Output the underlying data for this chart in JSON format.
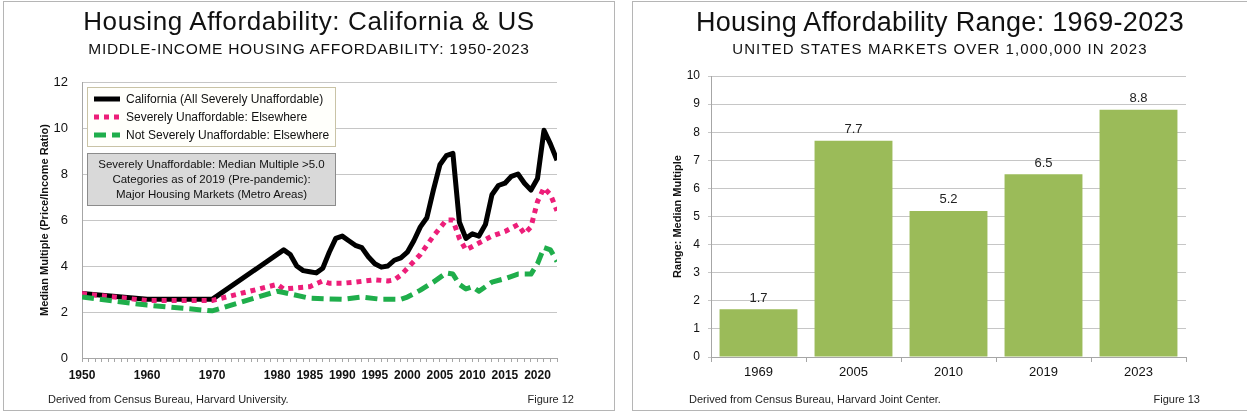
{
  "chart_data": [
    {
      "type": "line",
      "title": "Housing Affordability: California & US",
      "subtitle": "MIDDLE-INCOME HOUSING AFFORDABILITY: 1950-2023",
      "ylabel": "Median Multiple (Price/Income Ratio)",
      "xlim": [
        1950,
        2023
      ],
      "xticks": [
        1950,
        {
          "value": 1951,
          "label": null
        },
        {
          "value": 1952,
          "label": null
        },
        {
          "value": 1953,
          "label": null
        },
        {
          "value": 1954,
          "label": null
        },
        {
          "value": 1955,
          "label": null
        },
        {
          "value": 1956,
          "label": null
        },
        {
          "value": 1957,
          "label": null
        },
        {
          "value": 1958,
          "label": null
        },
        {
          "value": 1959,
          "label": null
        },
        1960,
        {
          "value": 1961,
          "label": null
        },
        {
          "value": 1962,
          "label": null
        },
        {
          "value": 1963,
          "label": null
        },
        {
          "value": 1964,
          "label": null
        },
        {
          "value": 1965,
          "label": null
        },
        {
          "value": 1966,
          "label": null
        },
        {
          "value": 1967,
          "label": null
        },
        {
          "value": 1968,
          "label": null
        },
        {
          "value": 1969,
          "label": null
        },
        1970,
        {
          "value": 1971,
          "label": null
        },
        {
          "value": 1972,
          "label": null
        },
        {
          "value": 1973,
          "label": null
        },
        {
          "value": 1974,
          "label": null
        },
        {
          "value": 1975,
          "label": null
        },
        {
          "value": 1976,
          "label": null
        },
        {
          "value": 1977,
          "label": null
        },
        {
          "value": 1978,
          "label": null
        },
        {
          "value": 1979,
          "label": null
        },
        1980,
        {
          "value": 1981,
          "label": null
        },
        {
          "value": 1982,
          "label": null
        },
        {
          "value": 1983,
          "label": null
        },
        {
          "value": 1984,
          "label": null
        },
        1985,
        {
          "value": 1986,
          "label": null
        },
        {
          "value": 1987,
          "label": null
        },
        {
          "value": 1988,
          "label": null
        },
        {
          "value": 1989,
          "label": null
        },
        1990,
        {
          "value": 1991,
          "label": null
        },
        {
          "value": 1992,
          "label": null
        },
        {
          "value": 1993,
          "label": null
        },
        {
          "value": 1994,
          "label": null
        },
        1995,
        {
          "value": 1996,
          "label": null
        },
        {
          "value": 1997,
          "label": null
        },
        {
          "value": 1998,
          "label": null
        },
        {
          "value": 1999,
          "label": null
        },
        2000,
        {
          "value": 2001,
          "label": null
        },
        {
          "value": 2002,
          "label": null
        },
        {
          "value": 2003,
          "label": null
        },
        {
          "value": 2004,
          "label": null
        },
        2005,
        {
          "value": 2006,
          "label": null
        },
        {
          "value": 2007,
          "label": null
        },
        {
          "value": 2008,
          "label": null
        },
        {
          "value": 2009,
          "label": null
        },
        2010,
        {
          "value": 2011,
          "label": null
        },
        {
          "value": 2012,
          "label": null
        },
        {
          "value": 2013,
          "label": null
        },
        {
          "value": 2014,
          "label": null
        },
        2015,
        {
          "value": 2016,
          "label": null
        },
        {
          "value": 2017,
          "label": null
        },
        {
          "value": 2018,
          "label": null
        },
        {
          "value": 2019,
          "label": null
        },
        2020,
        {
          "value": 2021,
          "label": null
        },
        {
          "value": 2022,
          "label": null
        },
        {
          "value": 2023,
          "label": null
        }
      ],
      "ylim": [
        0,
        12
      ],
      "yticks": [
        0,
        2,
        4,
        6,
        8,
        10,
        12
      ],
      "grid": "y",
      "legend": "top left",
      "series": [
        {
          "name": "California (All Severely Unaffordable)",
          "color": "#000000",
          "line_style": "solid",
          "x": [
            1950,
            1960,
            1970,
            1981,
            1982,
            1983,
            1984,
            1985,
            1986,
            1987,
            1988,
            1989,
            1990,
            1991,
            1992,
            1993,
            1994,
            1995,
            1996,
            1997,
            1998,
            1999,
            2000,
            2001,
            2002,
            2003,
            2004,
            2005,
            2006,
            2007,
            2008,
            2009,
            2010,
            2011,
            2012,
            2013,
            2014,
            2015,
            2016,
            2017,
            2018,
            2019,
            2020,
            2021,
            2022,
            2023
          ],
          "values": [
            2.8,
            2.55,
            2.55,
            4.7,
            4.5,
            4.0,
            3.8,
            3.75,
            3.7,
            3.9,
            4.6,
            5.2,
            5.3,
            5.1,
            4.9,
            4.8,
            4.4,
            4.1,
            3.95,
            4.0,
            4.25,
            4.35,
            4.6,
            5.1,
            5.7,
            6.1,
            7.3,
            8.4,
            8.8,
            8.9,
            5.9,
            5.2,
            5.4,
            5.3,
            5.8,
            7.1,
            7.5,
            7.6,
            7.9,
            8.0,
            7.6,
            7.3,
            7.8,
            9.9,
            9.3,
            8.6
          ]
        },
        {
          "name": "Severely Unaffordable: Elsewhere",
          "color": "#ed1e79",
          "line_style": "dotted",
          "x": [
            1950,
            1960,
            1970,
            1980,
            1981,
            1983,
            1985,
            1987,
            1988,
            1990,
            1992,
            1995,
            1997,
            1998,
            1999,
            2000,
            2002,
            2004,
            2006,
            2007,
            2008,
            2009,
            2010,
            2011,
            2013,
            2015,
            2017,
            2018,
            2019,
            2020,
            2021,
            2022,
            2023
          ],
          "values": [
            2.8,
            2.5,
            2.5,
            3.2,
            3.0,
            3.05,
            3.1,
            3.35,
            3.25,
            3.25,
            3.3,
            3.4,
            3.35,
            3.4,
            3.6,
            3.9,
            4.5,
            5.3,
            6.0,
            6.0,
            5.2,
            4.7,
            4.85,
            5.0,
            5.3,
            5.5,
            5.8,
            5.4,
            5.7,
            6.8,
            7.4,
            7.1,
            6.4
          ]
        },
        {
          "name": "Not Severely Unaffordable: Elsewhere",
          "color": "#1fae4b",
          "line_style": "dashed",
          "x": [
            1950,
            1960,
            1970,
            1980,
            1981,
            1985,
            1990,
            1993,
            1996,
            1999,
            2000,
            2002,
            2004,
            2006,
            2007,
            2008,
            2009,
            2010,
            2011,
            2013,
            2015,
            2017,
            2019,
            2020,
            2021,
            2022,
            2023
          ],
          "values": [
            2.65,
            2.3,
            2.05,
            2.9,
            2.85,
            2.6,
            2.55,
            2.65,
            2.55,
            2.55,
            2.65,
            2.95,
            3.3,
            3.7,
            3.65,
            3.2,
            3.0,
            3.1,
            2.9,
            3.3,
            3.45,
            3.65,
            3.65,
            4.1,
            4.8,
            4.7,
            4.2
          ]
        }
      ],
      "annotations": [
        "Severely Unaffordable: Median Multiple >5.0\nCategories as of 2019 (Pre-pandemic):\nMajor Housing Markets (Metro Areas)",
        "Derived from Census Bureau, Harvard University.",
        "Figure 12"
      ]
    },
    {
      "type": "bar",
      "title": "Housing Affordability Range: 1969-2023",
      "subtitle": "UNITED STATES MARKETS OVER 1,000,000 IN 2023",
      "ylabel": "Range: Median Multiple",
      "categories": [
        "1969",
        "2005",
        "2010",
        "2019",
        "2023"
      ],
      "values": [
        1.7,
        7.7,
        5.2,
        6.5,
        8.8
      ],
      "color": "#9bbb59",
      "ylim": [
        0,
        10
      ],
      "yticks": [
        0,
        1,
        2,
        3,
        4,
        5,
        6,
        7,
        8,
        9,
        10
      ],
      "grid": "y",
      "data_labels": true,
      "annotations": [
        "Derived from Census Bureau, Harvard Joint Center.",
        "Figure 13"
      ]
    }
  ]
}
